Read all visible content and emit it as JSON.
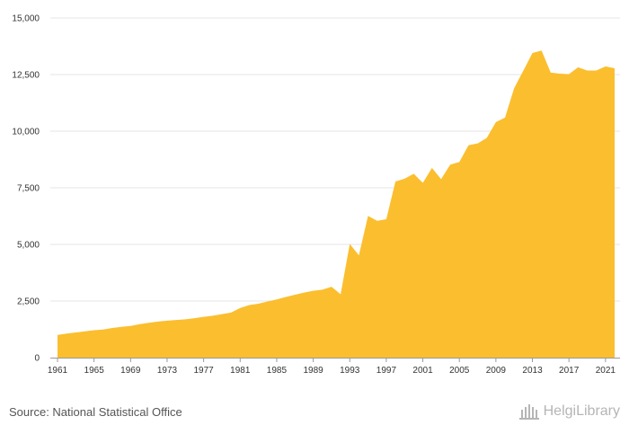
{
  "chart_data": {
    "type": "area",
    "title": "",
    "xlabel": "",
    "ylabel": "",
    "xlim": [
      1961,
      2022
    ],
    "ylim": [
      0,
      15000
    ],
    "yticks": [
      0,
      2500,
      5000,
      7500,
      10000,
      12500,
      15000
    ],
    "ytick_labels": [
      "0",
      "2,500",
      "5,000",
      "7,500",
      "10,000",
      "12,500",
      "15,000"
    ],
    "xticks": [
      1961,
      1965,
      1969,
      1973,
      1977,
      1981,
      1985,
      1989,
      1993,
      1997,
      2001,
      2005,
      2009,
      2013,
      2017,
      2021
    ],
    "xtick_labels": [
      "1961",
      "1965",
      "1969",
      "1973",
      "1977",
      "1981",
      "1985",
      "1989",
      "1993",
      "1997",
      "2001",
      "2005",
      "2009",
      "2013",
      "2017",
      "2021"
    ],
    "grid": true,
    "legend": "none",
    "color": "#FBBE2E",
    "x": [
      1961,
      1962,
      1963,
      1964,
      1965,
      1966,
      1967,
      1968,
      1969,
      1970,
      1971,
      1972,
      1973,
      1974,
      1975,
      1976,
      1977,
      1978,
      1979,
      1980,
      1981,
      1982,
      1983,
      1984,
      1985,
      1986,
      1987,
      1988,
      1989,
      1990,
      1991,
      1992,
      1993,
      1994,
      1995,
      1996,
      1997,
      1998,
      1999,
      2000,
      2001,
      2002,
      2003,
      2004,
      2005,
      2006,
      2007,
      2008,
      2009,
      2010,
      2011,
      2012,
      2013,
      2014,
      2015,
      2016,
      2017,
      2018,
      2019,
      2020,
      2021,
      2022
    ],
    "values": [
      1000,
      1060,
      1110,
      1160,
      1210,
      1240,
      1310,
      1360,
      1400,
      1480,
      1540,
      1590,
      1630,
      1660,
      1690,
      1740,
      1800,
      1850,
      1920,
      1990,
      2190,
      2320,
      2380,
      2480,
      2570,
      2680,
      2780,
      2870,
      2950,
      3000,
      3130,
      2800,
      5020,
      4520,
      6260,
      6040,
      6110,
      7780,
      7900,
      8120,
      7720,
      8380,
      7880,
      8520,
      8640,
      9380,
      9460,
      9700,
      10400,
      10600,
      11900,
      12670,
      13450,
      13560,
      12590,
      12540,
      12520,
      12820,
      12680,
      12680,
      12860,
      12780
    ]
  },
  "footer": {
    "source": "Source: National Statistical Office",
    "brand": "HelgiLibrary"
  }
}
